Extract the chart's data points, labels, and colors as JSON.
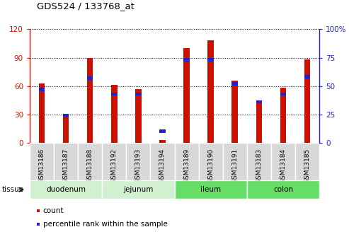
{
  "title": "GDS524 / 133768_at",
  "samples": [
    "GSM13186",
    "GSM13187",
    "GSM13188",
    "GSM13192",
    "GSM13193",
    "GSM13194",
    "GSM13189",
    "GSM13190",
    "GSM13191",
    "GSM13183",
    "GSM13184",
    "GSM13185"
  ],
  "count_values": [
    63,
    30,
    90,
    61,
    57,
    3,
    100,
    108,
    66,
    42,
    58,
    88
  ],
  "percentile_values": [
    47,
    24,
    57,
    43,
    43,
    10,
    73,
    73,
    52,
    36,
    43,
    58
  ],
  "tissues": [
    {
      "label": "duodenum",
      "start": 0,
      "end": 3,
      "color": "#d0f0d0"
    },
    {
      "label": "jejunum",
      "start": 3,
      "end": 6,
      "color": "#d0f0d0"
    },
    {
      "label": "ileum",
      "start": 6,
      "end": 9,
      "color": "#66dd66"
    },
    {
      "label": "colon",
      "start": 9,
      "end": 12,
      "color": "#66dd66"
    }
  ],
  "bar_color": "#cc1100",
  "blue_color": "#2222cc",
  "left_ylim": [
    0,
    120
  ],
  "right_ylim": [
    0,
    100
  ],
  "left_yticks": [
    0,
    30,
    60,
    90,
    120
  ],
  "right_yticks": [
    0,
    25,
    50,
    75,
    100
  ],
  "right_yticklabels": [
    "0",
    "25",
    "50",
    "75",
    "100%"
  ],
  "left_ylabel_color": "#cc1100",
  "right_ylabel_color": "#2222cc",
  "tissue_label": "tissue",
  "legend_count": "count",
  "legend_percentile": "percentile rank within the sample",
  "bar_width": 0.25
}
